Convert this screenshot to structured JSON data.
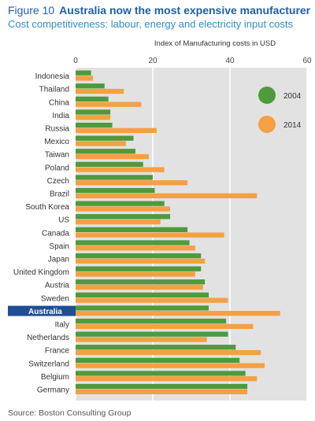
{
  "figure": {
    "number": "Figure 10",
    "title": "Australia now the most expensive manufacturer",
    "subtitle": "Cost competitiveness: labour, energy and electricity input costs",
    "source": "Source: Boston Consulting Group"
  },
  "colors": {
    "series_2004": "#4f9a3c",
    "series_2014": "#f4a043",
    "highlight": "#1f4e96",
    "plot_bg": "#e2e2e2",
    "title": "#1f5fa8",
    "subtitle": "#2e8fc7"
  },
  "chart_data": {
    "type": "bar",
    "orientation": "horizontal",
    "xlabel": "Index of Manufacturing costs in USD",
    "ylabel": "",
    "xlim": [
      0,
      60
    ],
    "xticks": [
      0,
      20,
      40,
      60
    ],
    "grid": true,
    "legend_position": "top-right",
    "highlighted_category": "Australia",
    "categories": [
      "Indonesia",
      "Thailand",
      "China",
      "India",
      "Russia",
      "Mexico",
      "Taiwan",
      "Poland",
      "Czech",
      "Brazil",
      "South Korea",
      "US",
      "Canada",
      "Spain",
      "Japan",
      "United Kingdom",
      "Austria",
      "Sweden",
      "Australia",
      "Italy",
      "Netherlands",
      "France",
      "Switzerland",
      "Belgium",
      "Germany"
    ],
    "series": [
      {
        "name": "2004",
        "values": [
          4,
          7.5,
          8.5,
          9,
          9.5,
          15,
          15.5,
          17.5,
          20,
          20.5,
          23,
          24.5,
          29,
          29.5,
          32.5,
          32.5,
          33.5,
          34.5,
          34.5,
          39,
          39.5,
          41.5,
          42.5,
          44,
          44.5
        ]
      },
      {
        "name": "2014",
        "values": [
          4.5,
          12.5,
          17,
          9,
          21,
          13,
          19,
          23,
          29,
          47,
          24.5,
          22,
          38.5,
          31,
          33.5,
          31,
          33,
          39.5,
          53,
          46,
          34,
          48,
          49,
          47,
          44.5
        ]
      }
    ]
  }
}
